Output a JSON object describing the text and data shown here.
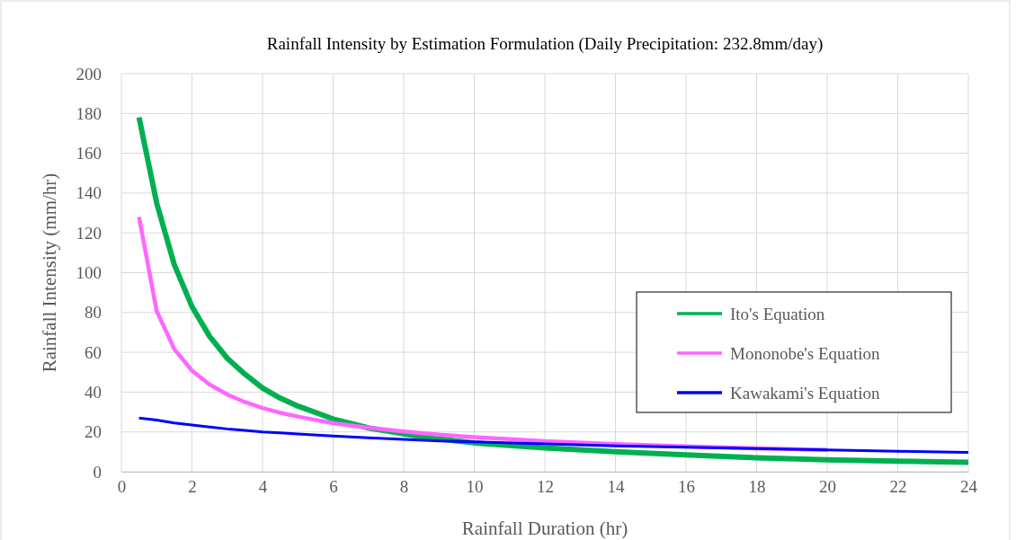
{
  "chart_data": {
    "type": "line",
    "title": "Rainfall Intensity by Estimation Formulation (Daily Precipitation: 232.8mm/day)",
    "xlabel": "Rainfall Duration (hr)",
    "ylabel": "Rainfall Intensity (mm/hr)",
    "x": [
      0.5,
      1,
      1.5,
      2,
      2.5,
      3,
      3.5,
      4,
      4.5,
      5,
      6,
      7,
      8,
      9,
      10,
      12,
      14,
      16,
      18,
      20,
      22,
      24
    ],
    "series": [
      {
        "name": "Ito's Equation",
        "color": "#00b050",
        "values": [
          178,
          135,
          104,
          83,
          68,
          57,
          49,
          42,
          37,
          33,
          26.5,
          22,
          19,
          16.5,
          14.5,
          12,
          10,
          8.5,
          7,
          6,
          5.3,
          4.7
        ]
      },
      {
        "name": "Mononobe's Equation",
        "color": "#ff66ff",
        "values": [
          128,
          80.7,
          61.6,
          50.8,
          43.8,
          38.8,
          35,
          32,
          29.6,
          27.7,
          24.4,
          22.1,
          20.2,
          18.6,
          17.4,
          15.4,
          13.9,
          12.7,
          11.7,
          10.9,
          null,
          null
        ]
      },
      {
        "name": "Kawakami's Equation",
        "color": "#0000ff",
        "values": [
          27,
          26,
          24.5,
          23.5,
          22.5,
          21.5,
          20.8,
          20,
          19.5,
          19,
          18,
          17,
          16.3,
          15.5,
          15,
          14,
          13,
          12.3,
          11.6,
          11,
          10.3,
          9.7
        ]
      }
    ],
    "xlim": [
      0,
      24
    ],
    "xticks": [
      0,
      2,
      4,
      6,
      8,
      10,
      12,
      14,
      16,
      18,
      20,
      22,
      24
    ],
    "ylim": [
      0,
      200
    ],
    "yticks": [
      0,
      20,
      40,
      60,
      80,
      100,
      120,
      140,
      160,
      180,
      200
    ],
    "grid": true,
    "legend": "right",
    "marker": "none",
    "line_style": "solid"
  }
}
